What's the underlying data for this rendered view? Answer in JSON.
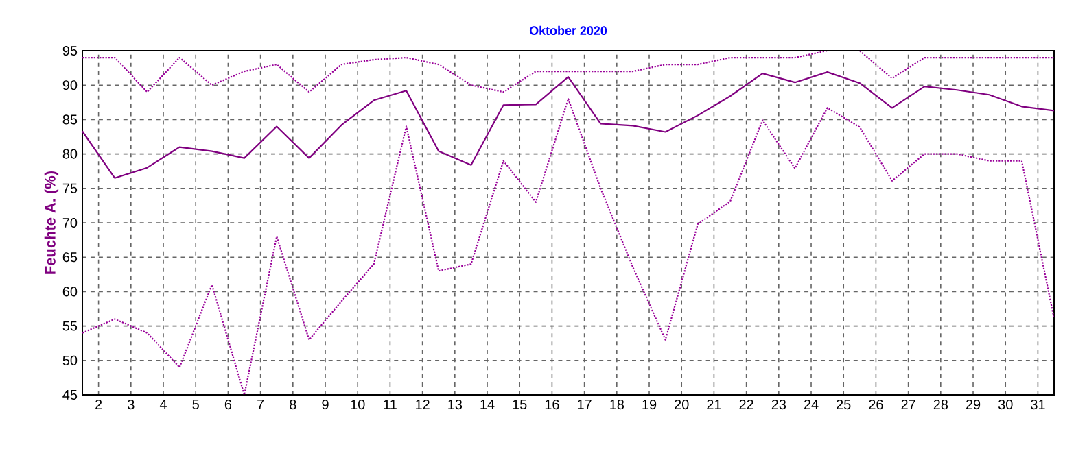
{
  "chart_data": {
    "type": "line",
    "title": "Oktober 2020",
    "ylabel": "Feuchte A. (%)",
    "x": [
      1.5,
      2.5,
      3.5,
      4.5,
      5.5,
      6.5,
      7.5,
      8.5,
      9.5,
      10.5,
      11.5,
      12.5,
      13.5,
      14.5,
      15.5,
      16.5,
      17.5,
      18.5,
      19.5,
      20.5,
      21.5,
      22.5,
      23.5,
      24.5,
      25.5,
      26.5,
      27.5,
      28.5,
      29.5,
      30.5,
      31.5
    ],
    "series": [
      {
        "color": "#990099",
        "line_style": "dotted",
        "values": [
          94,
          94,
          89,
          94,
          90,
          92,
          93,
          89,
          93,
          93.7,
          94,
          93,
          90,
          89,
          92,
          92,
          92,
          92,
          93,
          93,
          94,
          94,
          94,
          95,
          95,
          91,
          94,
          94,
          94,
          94,
          94
        ]
      },
      {
        "color": "#800080",
        "line_style": "solid",
        "values": [
          83.3,
          76.5,
          78,
          81,
          80.4,
          79.4,
          84,
          79.4,
          84.2,
          87.8,
          89.2,
          80.4,
          78.4,
          87.1,
          87.2,
          91.2,
          84.4,
          84.1,
          83.2,
          85.6,
          88.4,
          91.7,
          90.4,
          91.9,
          90.3,
          86.7,
          89.8,
          89.3,
          88.6,
          86.9,
          86.3
        ]
      },
      {
        "color": "#990099",
        "line_style": "dotted",
        "values": [
          54,
          56,
          54,
          49,
          61,
          45,
          68,
          53,
          58.6,
          64,
          84,
          63,
          64,
          79,
          73,
          88,
          75,
          63.5,
          53,
          69.8,
          73.1,
          84.9,
          77.9,
          86.7,
          83.9,
          76.1,
          80,
          80,
          79,
          79,
          56.1
        ]
      }
    ],
    "xlim": [
      1.5,
      31.5
    ],
    "xticks": [
      2,
      3,
      4,
      5,
      6,
      7,
      8,
      9,
      10,
      11,
      12,
      13,
      14,
      15,
      16,
      17,
      18,
      19,
      20,
      21,
      22,
      23,
      24,
      25,
      26,
      27,
      28,
      29,
      30,
      31
    ],
    "ylim": [
      45,
      95
    ],
    "yticks": [
      45,
      50,
      55,
      60,
      65,
      70,
      75,
      80,
      85,
      90,
      95
    ],
    "grid": true,
    "marker": "none"
  }
}
